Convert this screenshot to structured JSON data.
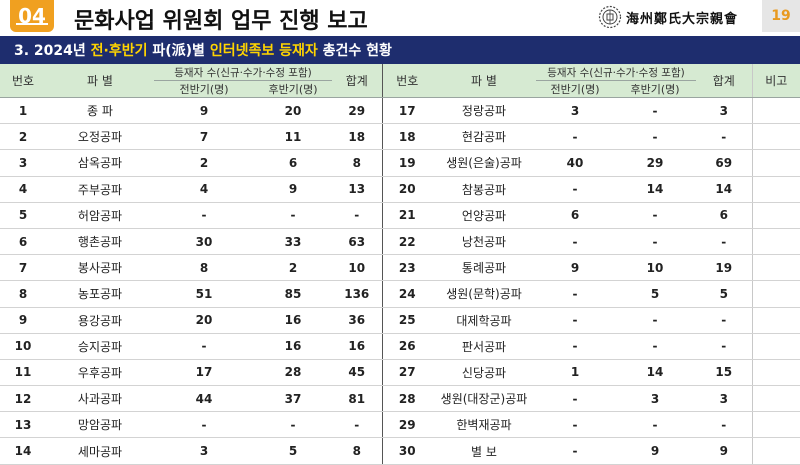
{
  "header": {
    "section_number": "04",
    "title": "문화사업 위원회 업무 진행 보고",
    "org_name": "海州鄭氏大宗親會",
    "page_number": "19"
  },
  "subheader": {
    "prefix": "3. 2024년 ",
    "highlight1": "전·후반기",
    "mid": " 파(派)별 ",
    "highlight2": "인터넷족보 등재자",
    "suffix": " 총건수 현황"
  },
  "table": {
    "headers": {
      "no": "번호",
      "branch": "파 별",
      "count_group": "등재자 수(신규·수가·수정 포함)",
      "first_half": "전반기(명)",
      "second_half": "후반기(명)",
      "total": "합계",
      "note": "비고"
    },
    "rows": [
      {
        "no": "1",
        "name": "종 파",
        "first": "9",
        "second": "20",
        "total": "29",
        "no2": "17",
        "name2": "정랑공파",
        "first2": "3",
        "second2": "-",
        "total2": "3"
      },
      {
        "no": "2",
        "name": "오정공파",
        "first": "7",
        "second": "11",
        "total": "18",
        "no2": "18",
        "name2": "현감공파",
        "first2": "-",
        "second2": "-",
        "total2": "-"
      },
      {
        "no": "3",
        "name": "삼옥공파",
        "first": "2",
        "second": "6",
        "total": "8",
        "no2": "19",
        "name2": "생원(은술)공파",
        "first2": "40",
        "second2": "29",
        "total2": "69"
      },
      {
        "no": "4",
        "name": "주부공파",
        "first": "4",
        "second": "9",
        "total": "13",
        "no2": "20",
        "name2": "참봉공파",
        "first2": "-",
        "second2": "14",
        "total2": "14"
      },
      {
        "no": "5",
        "name": "허암공파",
        "first": "-",
        "second": "-",
        "total": "-",
        "no2": "21",
        "name2": "언양공파",
        "first2": "6",
        "second2": "-",
        "total2": "6"
      },
      {
        "no": "6",
        "name": "행촌공파",
        "first": "30",
        "second": "33",
        "total": "63",
        "no2": "22",
        "name2": "낭천공파",
        "first2": "-",
        "second2": "-",
        "total2": "-"
      },
      {
        "no": "7",
        "name": "봉사공파",
        "first": "8",
        "second": "2",
        "total": "10",
        "no2": "23",
        "name2": "통례공파",
        "first2": "9",
        "second2": "10",
        "total2": "19"
      },
      {
        "no": "8",
        "name": "농포공파",
        "first": "51",
        "second": "85",
        "total": "136",
        "no2": "24",
        "name2": "생원(문학)공파",
        "first2": "-",
        "second2": "5",
        "total2": "5"
      },
      {
        "no": "9",
        "name": "용강공파",
        "first": "20",
        "second": "16",
        "total": "36",
        "no2": "25",
        "name2": "대제학공파",
        "first2": "-",
        "second2": "-",
        "total2": "-"
      },
      {
        "no": "10",
        "name": "승지공파",
        "first": "-",
        "second": "16",
        "total": "16",
        "no2": "26",
        "name2": "판서공파",
        "first2": "-",
        "second2": "-",
        "total2": "-"
      },
      {
        "no": "11",
        "name": "우후공파",
        "first": "17",
        "second": "28",
        "total": "45",
        "no2": "27",
        "name2": "신당공파",
        "first2": "1",
        "second2": "14",
        "total2": "15"
      },
      {
        "no": "12",
        "name": "사과공파",
        "first": "44",
        "second": "37",
        "total": "81",
        "no2": "28",
        "name2": "생원(대장군)공파",
        "first2": "-",
        "second2": "3",
        "total2": "3"
      },
      {
        "no": "13",
        "name": "망암공파",
        "first": "-",
        "second": "-",
        "total": "-",
        "no2": "29",
        "name2": "한벽재공파",
        "first2": "-",
        "second2": "-",
        "total2": "-"
      },
      {
        "no": "14",
        "name": "세마공파",
        "first": "3",
        "second": "5",
        "total": "8",
        "no2": "30",
        "name2": "별 보",
        "first2": "-",
        "second2": "9",
        "total2": "9"
      }
    ]
  },
  "colors": {
    "badge": "#f0a020",
    "subbar": "#1e2d6e",
    "highlight": "#ffd400",
    "header_bg": "#d6ead2",
    "page_no": "#e89a20"
  }
}
